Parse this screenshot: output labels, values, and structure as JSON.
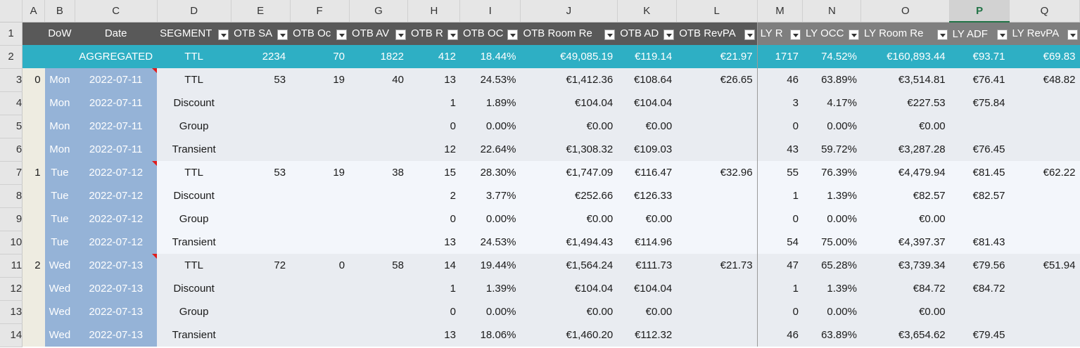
{
  "column_letters": [
    "A",
    "B",
    "C",
    "D",
    "E",
    "F",
    "G",
    "H",
    "I",
    "J",
    "K",
    "L",
    "M",
    "N",
    "O",
    "P",
    "Q"
  ],
  "selected_column": "P",
  "header_row": {
    "row_num": "1",
    "labels": [
      "",
      "DoW",
      "Date",
      "SEGMENT",
      "OTB SA",
      "OTB Oc",
      "OTB AV",
      "OTB R",
      "OTB OC",
      "OTB Room Re",
      "OTB AD",
      "OTB RevPA",
      "LY R",
      "LY OCC",
      "LY Room Re",
      "LY ADF",
      "LY RevPA"
    ]
  },
  "aggregate_row": {
    "row_num": "2",
    "cells": [
      "",
      "",
      "AGGREGATED",
      "TTL",
      "2234",
      "70",
      "1822",
      "412",
      "18.44%",
      "€49,085.19",
      "€119.14",
      "€21.97",
      "1717",
      "74.52%",
      "€160,893.44",
      "€93.71",
      "€69.83"
    ]
  },
  "rows": [
    {
      "row_num": "3",
      "group": 0,
      "cells": [
        "0",
        "Mon",
        "2022-07-11",
        "TTL",
        "53",
        "19",
        "40",
        "13",
        "24.53%",
        "€1,412.36",
        "€108.64",
        "€26.65",
        "46",
        "63.89%",
        "€3,514.81",
        "€76.41",
        "€48.82"
      ]
    },
    {
      "row_num": "4",
      "group": 0,
      "cells": [
        "",
        "Mon",
        "2022-07-11",
        "Discount",
        "",
        "",
        "",
        "1",
        "1.89%",
        "€104.04",
        "€104.04",
        "",
        "3",
        "4.17%",
        "€227.53",
        "€75.84",
        ""
      ]
    },
    {
      "row_num": "5",
      "group": 0,
      "cells": [
        "",
        "Mon",
        "2022-07-11",
        "Group",
        "",
        "",
        "",
        "0",
        "0.00%",
        "€0.00",
        "€0.00",
        "",
        "0",
        "0.00%",
        "€0.00",
        "",
        ""
      ]
    },
    {
      "row_num": "6",
      "group": 0,
      "cells": [
        "",
        "Mon",
        "2022-07-11",
        "Transient",
        "",
        "",
        "",
        "12",
        "22.64%",
        "€1,308.32",
        "€109.03",
        "",
        "43",
        "59.72%",
        "€3,287.28",
        "€76.45",
        ""
      ]
    },
    {
      "row_num": "7",
      "group": 1,
      "cells": [
        "1",
        "Tue",
        "2022-07-12",
        "TTL",
        "53",
        "19",
        "38",
        "15",
        "28.30%",
        "€1,747.09",
        "€116.47",
        "€32.96",
        "55",
        "76.39%",
        "€4,479.94",
        "€81.45",
        "€62.22"
      ]
    },
    {
      "row_num": "8",
      "group": 1,
      "cells": [
        "",
        "Tue",
        "2022-07-12",
        "Discount",
        "",
        "",
        "",
        "2",
        "3.77%",
        "€252.66",
        "€126.33",
        "",
        "1",
        "1.39%",
        "€82.57",
        "€82.57",
        ""
      ]
    },
    {
      "row_num": "9",
      "group": 1,
      "cells": [
        "",
        "Tue",
        "2022-07-12",
        "Group",
        "",
        "",
        "",
        "0",
        "0.00%",
        "€0.00",
        "€0.00",
        "",
        "0",
        "0.00%",
        "€0.00",
        "",
        ""
      ]
    },
    {
      "row_num": "10",
      "group": 1,
      "cells": [
        "",
        "Tue",
        "2022-07-12",
        "Transient",
        "",
        "",
        "",
        "13",
        "24.53%",
        "€1,494.43",
        "€114.96",
        "",
        "54",
        "75.00%",
        "€4,397.37",
        "€81.43",
        ""
      ]
    },
    {
      "row_num": "11",
      "group": 0,
      "cells": [
        "2",
        "Wed",
        "2022-07-13",
        "TTL",
        "72",
        "0",
        "58",
        "14",
        "19.44%",
        "€1,564.24",
        "€111.73",
        "€21.73",
        "47",
        "65.28%",
        "€3,739.34",
        "€79.56",
        "€51.94"
      ]
    },
    {
      "row_num": "12",
      "group": 0,
      "cells": [
        "",
        "Wed",
        "2022-07-13",
        "Discount",
        "",
        "",
        "",
        "1",
        "1.39%",
        "€104.04",
        "€104.04",
        "",
        "1",
        "1.39%",
        "€84.72",
        "€84.72",
        ""
      ]
    },
    {
      "row_num": "13",
      "group": 0,
      "cells": [
        "",
        "Wed",
        "2022-07-13",
        "Group",
        "",
        "",
        "",
        "0",
        "0.00%",
        "€0.00",
        "€0.00",
        "",
        "0",
        "0.00%",
        "€0.00",
        "",
        ""
      ]
    },
    {
      "row_num": "14",
      "group": 0,
      "cells": [
        "",
        "Wed",
        "2022-07-13",
        "Transient",
        "",
        "",
        "",
        "13",
        "18.06%",
        "€1,460.20",
        "€112.32",
        "",
        "46",
        "63.89%",
        "€3,654.62",
        "€79.45",
        ""
      ]
    }
  ],
  "colors": {
    "header_bg": "#595959",
    "ly_header_bg": "#7f7f7f",
    "aggregate_bg": "#2eafc4",
    "date_cell_bg": "#95b3d7",
    "comment_marker": "#e01b1b",
    "selection_accent": "#217346"
  }
}
